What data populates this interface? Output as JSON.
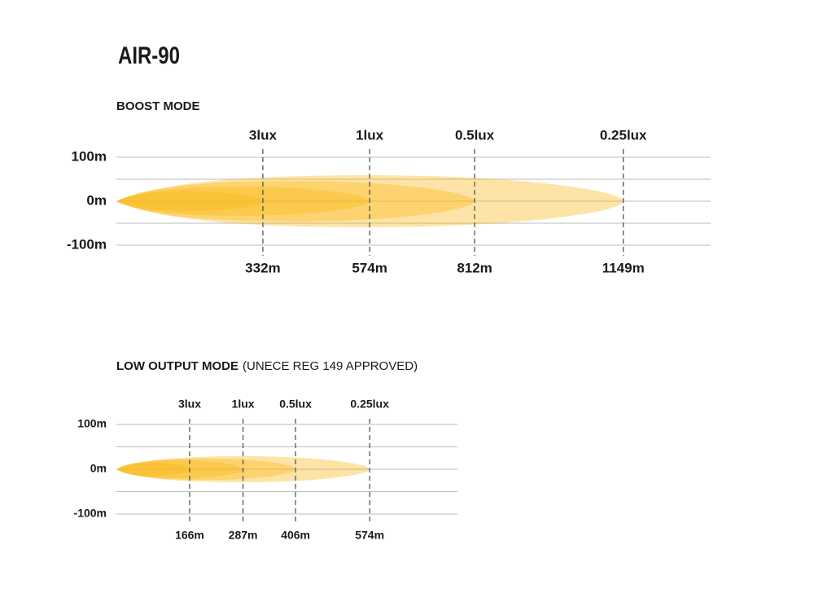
{
  "title": "AIR-90",
  "chart_data": [
    {
      "type": "beam",
      "title": "BOOST MODE",
      "categories": [
        "3lux",
        "1lux",
        "0.5lux",
        "0.25lux"
      ],
      "values": [
        332,
        574,
        812,
        1149
      ],
      "value_labels": [
        "332m",
        "574m",
        "812m",
        "1149m"
      ],
      "widths": [
        22,
        33,
        46,
        59
      ],
      "color": "#fbb814",
      "xlim": [
        0,
        1347
      ],
      "ylim": [
        -100,
        100
      ],
      "yticks": [
        {
          "value": 100,
          "label": "100m"
        },
        {
          "value": 0,
          "label": "0m"
        },
        {
          "value": -100,
          "label": "-100m"
        }
      ],
      "minor_yticks": [
        -50,
        50
      ],
      "grid": true
    },
    {
      "type": "beam",
      "title": "LOW OUTPUT MODE",
      "subtitle": "(UNECE REG 149 APPROVED)",
      "categories": [
        "3lux",
        "1lux",
        "0.5lux",
        "0.25lux"
      ],
      "values": [
        166,
        287,
        406,
        574
      ],
      "value_labels": [
        "166m",
        "287m",
        "406m",
        "574m"
      ],
      "widths": [
        15,
        20,
        24,
        29
      ],
      "color": "#fbb814",
      "xlim": [
        0,
        773
      ],
      "ylim": [
        -100,
        100
      ],
      "yticks": [
        {
          "value": 100,
          "label": "100m"
        },
        {
          "value": 0,
          "label": "0m"
        },
        {
          "value": -100,
          "label": "-100m"
        }
      ],
      "minor_yticks": [
        -50,
        50
      ],
      "grid": true
    }
  ]
}
